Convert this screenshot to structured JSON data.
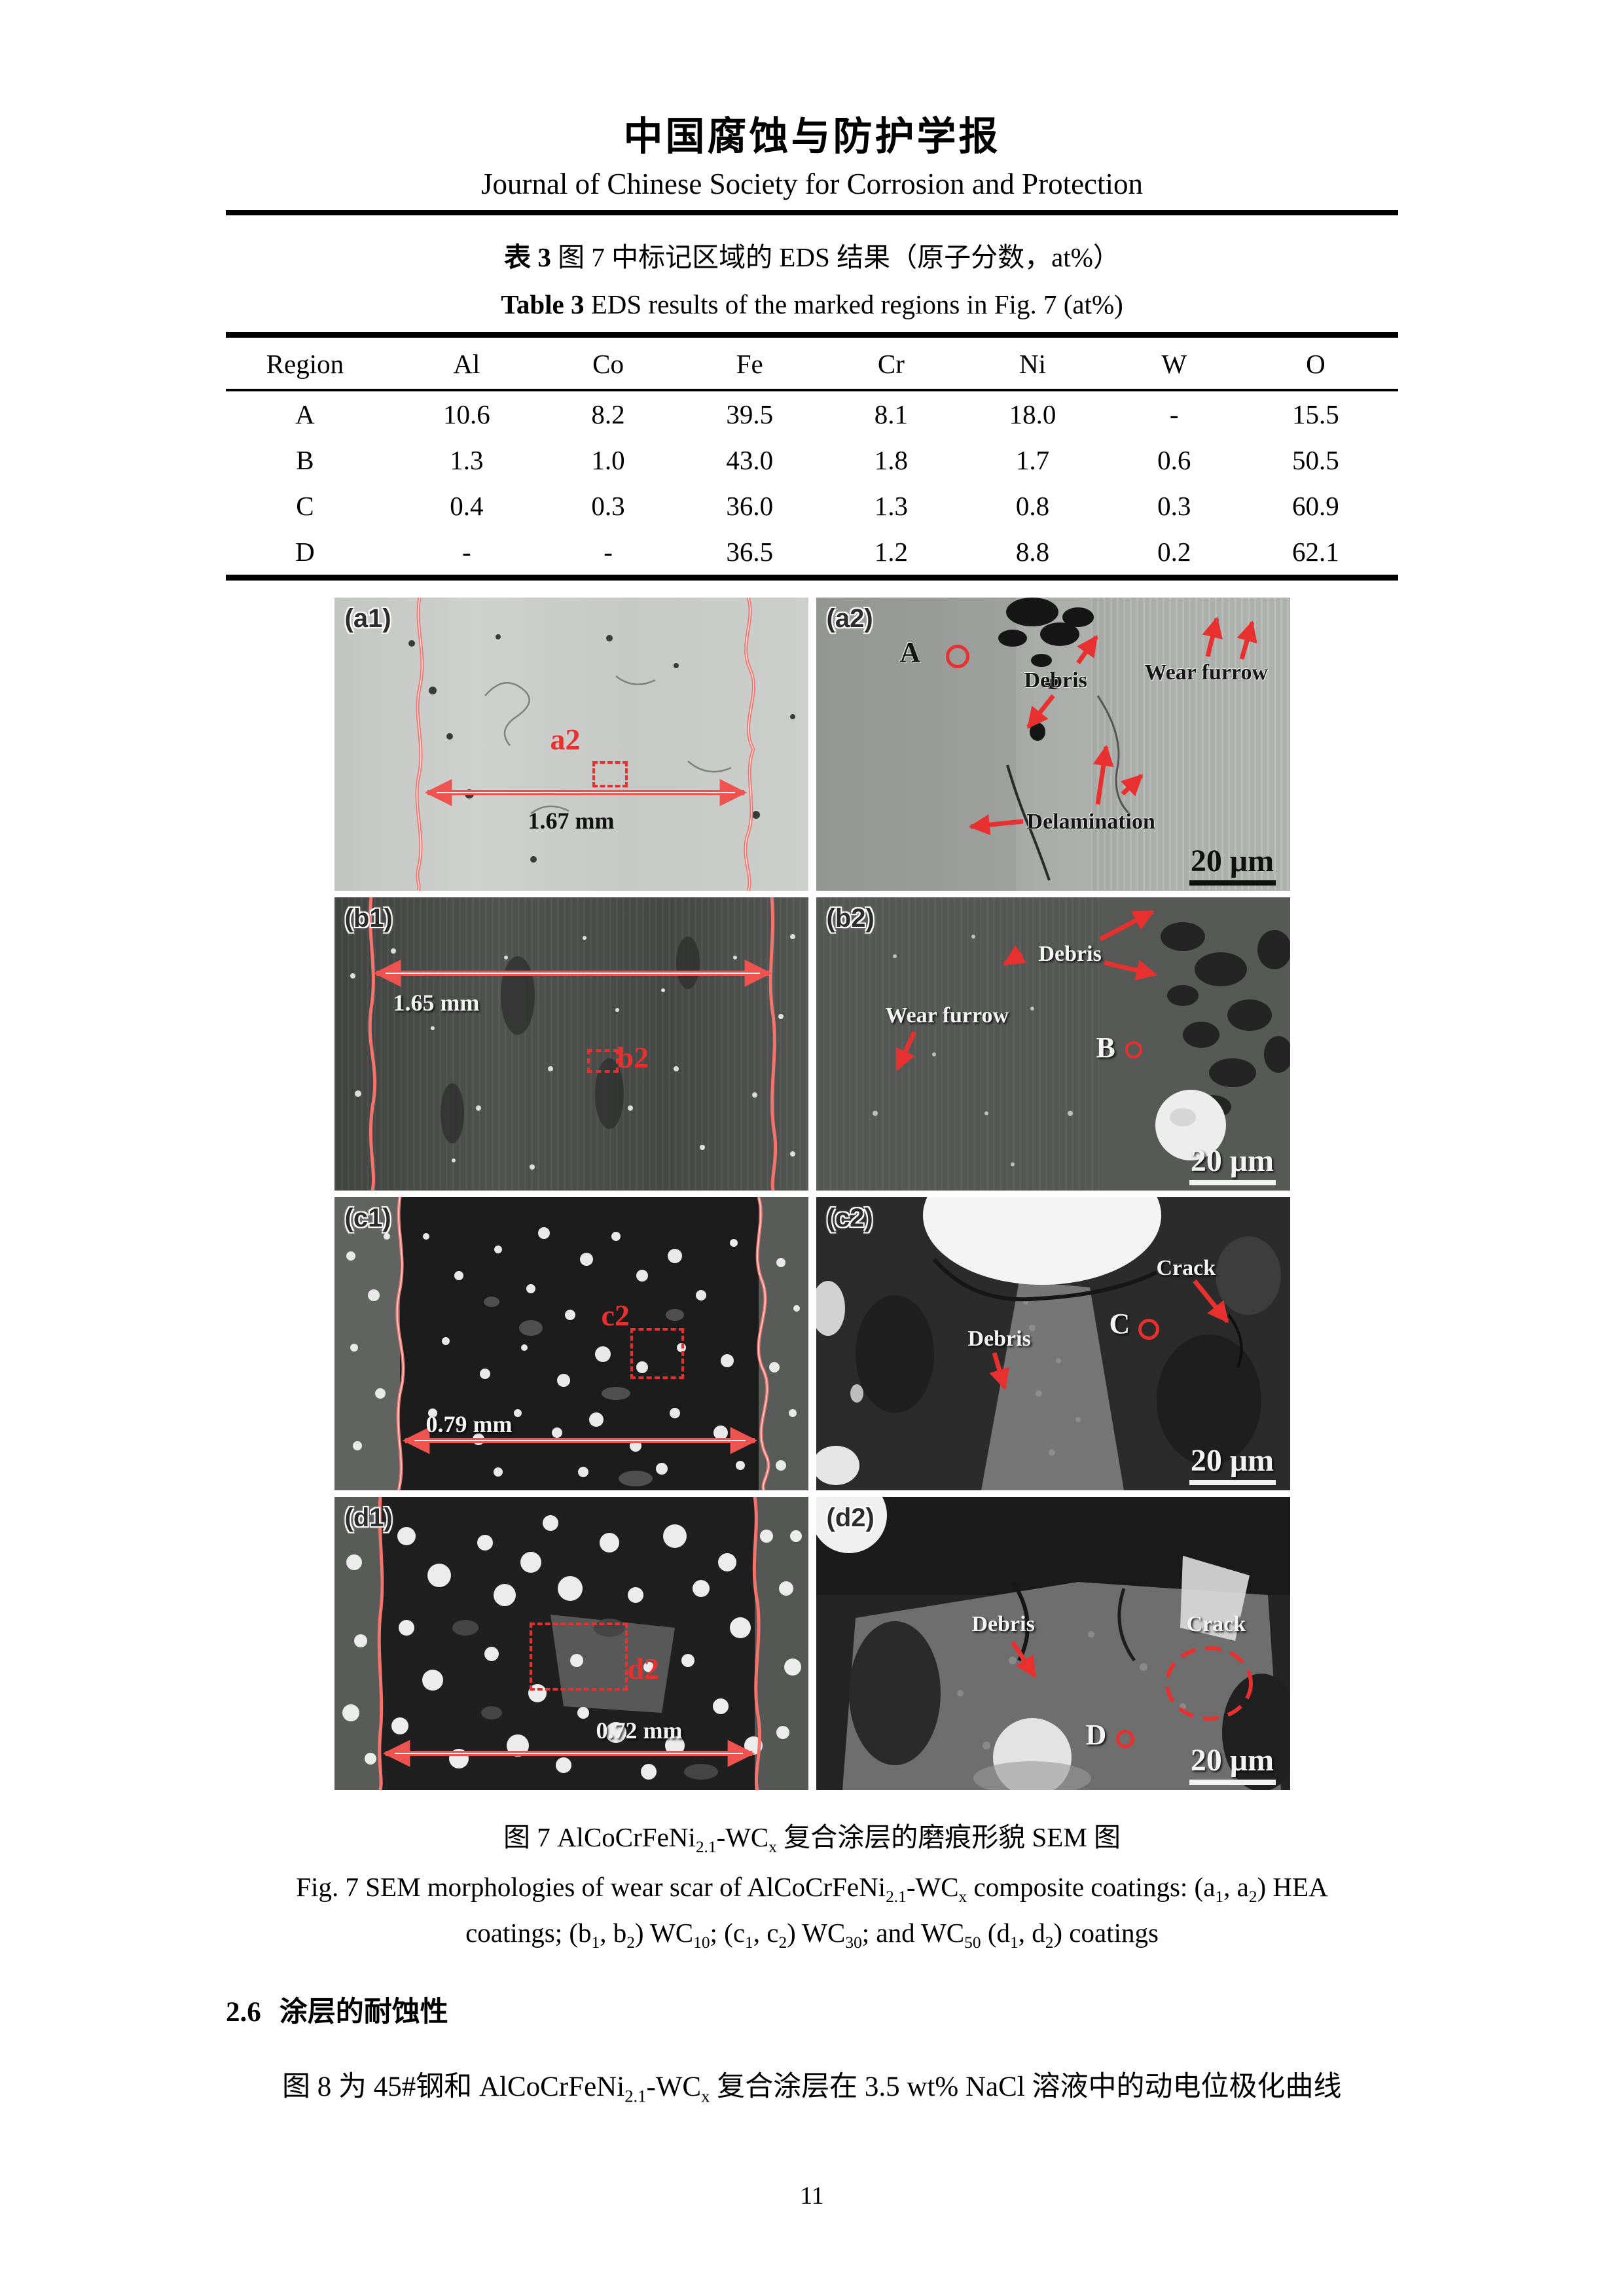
{
  "header": {
    "title_zh": "中国腐蚀与防护学报",
    "title_en": "Journal of Chinese Society for Corrosion and Protection"
  },
  "table": {
    "caption_zh_bold": "表 3",
    "caption_zh_rest": " 图 7 中标记区域的 EDS 结果（原子分数，at%）",
    "caption_en_bold": "Table 3",
    "caption_en_rest": " EDS results of the marked regions in Fig. 7 (at%)",
    "columns": [
      "Region",
      "Al",
      "Co",
      "Fe",
      "Cr",
      "Ni",
      "W",
      "O"
    ],
    "rows": [
      {
        "region": "A",
        "values": [
          "10.6",
          "8.2",
          "39.5",
          "8.1",
          "18.0",
          "-",
          "15.5"
        ]
      },
      {
        "region": "B",
        "values": [
          "1.3",
          "1.0",
          "43.0",
          "1.8",
          "1.7",
          "0.6",
          "50.5"
        ]
      },
      {
        "region": "C",
        "values": [
          "0.4",
          "0.3",
          "36.0",
          "1.3",
          "0.8",
          "0.3",
          "60.9"
        ]
      },
      {
        "region": "D",
        "values": [
          "-",
          "-",
          "36.5",
          "1.2",
          "8.8",
          "0.2",
          "62.1"
        ]
      }
    ]
  },
  "figure": {
    "panels": [
      {
        "label": "(a1)",
        "ref_label": "a2",
        "measurement": "1.67 mm"
      },
      {
        "label": "(a2)",
        "region": "A",
        "ann_debris": "Debris",
        "ann_wear_furrow": "Wear furrow",
        "ann_delamination": "Delamination",
        "scale": "20 μm"
      },
      {
        "label": "(b1)",
        "ref_label": "b2",
        "measurement": "1.65 mm"
      },
      {
        "label": "(b2)",
        "region": "B",
        "ann_debris": "Debris",
        "ann_wear_furrow": "Wear furrow",
        "scale": "20 μm"
      },
      {
        "label": "(c1)",
        "ref_label": "c2",
        "measurement": "0.79 mm"
      },
      {
        "label": "(c2)",
        "region": "C",
        "ann_debris": "Debris",
        "ann_crack": "Crack",
        "scale": "20 μm"
      },
      {
        "label": "(d1)",
        "ref_label": "d2",
        "measurement": "0.72 mm"
      },
      {
        "label": "(d2)",
        "region": "D",
        "ann_debris": "Debris",
        "ann_crack": "Crack",
        "scale": "20 μm"
      }
    ],
    "caption_zh_rich": [
      {
        "t": "图 7 AlCoCrFeNi"
      },
      {
        "t": "2.1",
        "sub": true
      },
      {
        "t": "-WC"
      },
      {
        "t": "x",
        "sub": true
      },
      {
        "t": " 复合涂层的磨痕形貌 SEM 图"
      }
    ],
    "caption_en1_rich": [
      {
        "t": "Fig. 7 SEM morphologies of wear scar of AlCoCrFeNi"
      },
      {
        "t": "2.1",
        "sub": true
      },
      {
        "t": "-WC"
      },
      {
        "t": "x",
        "sub": true
      },
      {
        "t": " composite coatings: (a"
      },
      {
        "t": "1",
        "sub": true
      },
      {
        "t": ", a"
      },
      {
        "t": "2",
        "sub": true
      },
      {
        "t": ") HEA"
      }
    ],
    "caption_en2_rich": [
      {
        "t": "coatings; (b"
      },
      {
        "t": "1",
        "sub": true
      },
      {
        "t": ", b"
      },
      {
        "t": "2",
        "sub": true
      },
      {
        "t": ") WC"
      },
      {
        "t": "10",
        "sub": true
      },
      {
        "t": "; (c"
      },
      {
        "t": "1",
        "sub": true
      },
      {
        "t": ", c"
      },
      {
        "t": "2",
        "sub": true
      },
      {
        "t": ") WC"
      },
      {
        "t": "30",
        "sub": true
      },
      {
        "t": "; and WC"
      },
      {
        "t": "50",
        "sub": true
      },
      {
        "t": " (d"
      },
      {
        "t": "1",
        "sub": true
      },
      {
        "t": ", d"
      },
      {
        "t": "2",
        "sub": true
      },
      {
        "t": ") coatings"
      }
    ]
  },
  "section": {
    "number": "2.6",
    "title": "涂层的耐蚀性"
  },
  "paragraph_rich": [
    {
      "t": "图 8 为 45#钢和 AlCoCrFeNi"
    },
    {
      "t": "2.1",
      "sub": true
    },
    {
      "t": "-WC"
    },
    {
      "t": "x",
      "sub": true
    },
    {
      "t": " 复合涂层在 3.5 wt% NaCl 溶液中的动电位极化曲线"
    }
  ],
  "page_number": "11",
  "colors": {
    "annotation_red": "#e8312f",
    "dimension_red": "#ef5350"
  }
}
